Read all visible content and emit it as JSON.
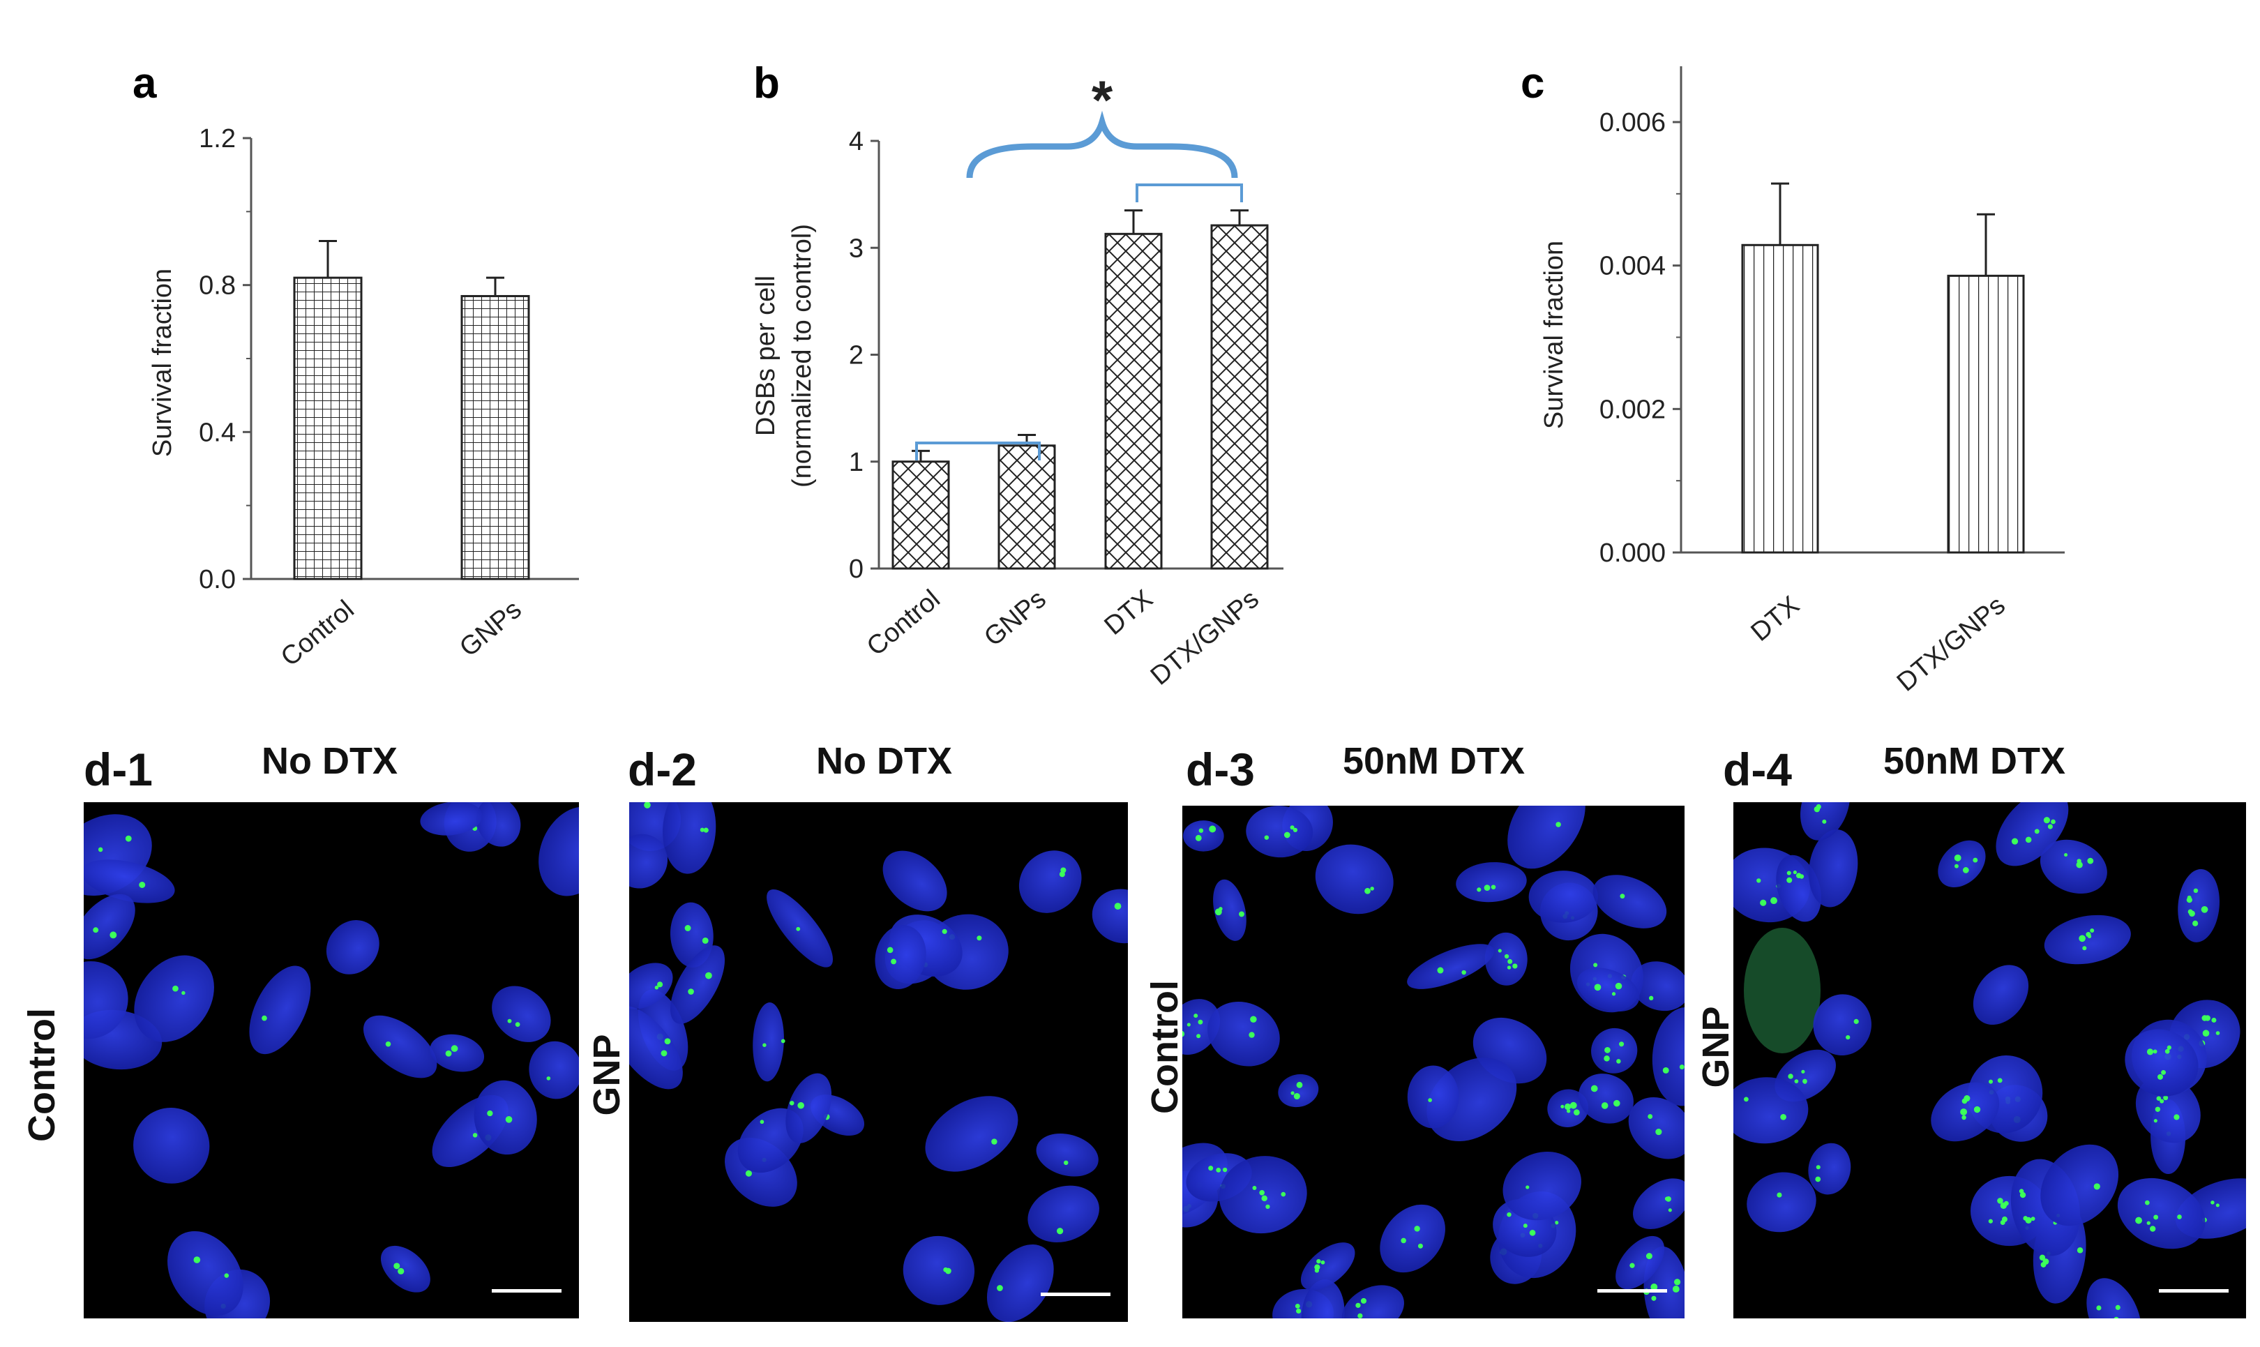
{
  "panel_a": {
    "letter": "a",
    "chart_data": {
      "type": "bar",
      "categories": [
        "Control",
        "GNPs"
      ],
      "values": [
        0.82,
        0.77
      ],
      "errors": [
        0.1,
        0.05
      ],
      "xlabel": "",
      "ylabel": "Survival fraction",
      "ylim": [
        0,
        1.2
      ],
      "yticks": [
        "0.0",
        "0.4",
        "0.8",
        "1.2"
      ],
      "pattern": "grid"
    }
  },
  "panel_b": {
    "letter": "b",
    "chart_data": {
      "type": "bar",
      "categories": [
        "Control",
        "GNPs",
        "DTX",
        "DTX/GNPs"
      ],
      "values": [
        1.0,
        1.15,
        3.13,
        3.21
      ],
      "errors": [
        0.1,
        0.1,
        0.22,
        0.14
      ],
      "xlabel": "",
      "ylabel": "DSBs per cell",
      "ylabel2": "(normalized to control)",
      "ylim": [
        0,
        4
      ],
      "yticks": [
        "0",
        "1",
        "2",
        "3",
        "4"
      ],
      "pattern": "crosshatch",
      "annotation": "*",
      "bracket_color": "#5b9bd5"
    }
  },
  "panel_c": {
    "letter": "c",
    "chart_data": {
      "type": "bar",
      "categories": [
        "DTX",
        "DTX/GNPs"
      ],
      "values": [
        0.005,
        0.0045
      ],
      "errors": [
        0.001,
        0.001
      ],
      "xlabel": "",
      "ylabel": "Survival fraction",
      "ylim": [
        0,
        0.007
      ],
      "yticks": [
        "0.000",
        "0.002",
        "0.004",
        "0.006"
      ],
      "pattern": "vertical-lines"
    }
  },
  "micrographs": [
    {
      "id": "d-1",
      "title": "No DTX",
      "side_label": "Control"
    },
    {
      "id": "d-2",
      "title": "No DTX",
      "side_label": "GNP"
    },
    {
      "id": "d-3",
      "title": "50nM DTX",
      "side_label": "Control"
    },
    {
      "id": "d-4",
      "title": "50nM DTX",
      "side_label": "GNP"
    }
  ],
  "colors": {
    "nucleus": "#1f2fd6",
    "foci": "#3cff5a",
    "bracket": "#5b9bd5",
    "background": "#000000"
  }
}
